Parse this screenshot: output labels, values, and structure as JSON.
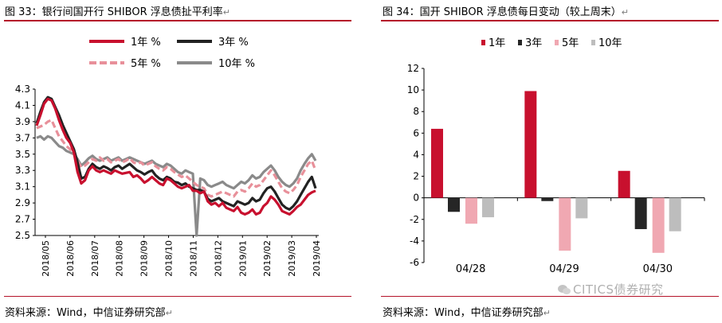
{
  "left": {
    "title": "图 33：银行间国开行 SHIBOR 浮息债扯平利率",
    "source": "资料来源：Wind，中信证券研究部",
    "chart_data": {
      "type": "line",
      "ylim": [
        2.5,
        4.3
      ],
      "yticks": [
        "4.3",
        "4.1",
        "3.9",
        "3.7",
        "3.5",
        "3.3",
        "3.1",
        "2.9",
        "2.7",
        "2.5"
      ],
      "xticks": [
        "2018/05",
        "2018/06",
        "2018/07",
        "2018/08",
        "2018/09",
        "2018/10",
        "2018/11",
        "2018/12",
        "2019/01",
        "2019/02",
        "2019/03",
        "2019/04"
      ],
      "series": [
        {
          "name": "1年 %",
          "color": "#c8102e",
          "dash": "",
          "width": 3.2,
          "values": [
            3.85,
            3.98,
            4.12,
            4.18,
            4.16,
            4.06,
            3.92,
            3.8,
            3.7,
            3.64,
            3.52,
            3.28,
            3.14,
            3.18,
            3.3,
            3.35,
            3.3,
            3.28,
            3.3,
            3.28,
            3.26,
            3.3,
            3.28,
            3.26,
            3.27,
            3.28,
            3.22,
            3.24,
            3.2,
            3.15,
            3.18,
            3.22,
            3.18,
            3.14,
            3.12,
            3.2,
            3.18,
            3.14,
            3.1,
            3.08,
            3.1,
            3.12,
            3.05,
            3.05,
            3.02,
            3.04,
            2.92,
            2.88,
            2.9,
            2.86,
            2.9,
            2.84,
            2.82,
            2.8,
            2.85,
            2.78,
            2.76,
            2.78,
            2.82,
            2.76,
            2.78,
            2.86,
            2.9,
            2.98,
            2.94,
            2.88,
            2.8,
            2.78,
            2.76,
            2.8,
            2.85,
            2.88,
            2.94,
            3.0,
            3.03,
            3.05
          ]
        },
        {
          "name": "3年 %",
          "color": "#222222",
          "dash": "",
          "width": 3.2,
          "values": [
            3.88,
            4.02,
            4.14,
            4.2,
            4.18,
            4.08,
            3.98,
            3.86,
            3.76,
            3.66,
            3.56,
            3.4,
            3.2,
            3.22,
            3.32,
            3.38,
            3.34,
            3.32,
            3.35,
            3.33,
            3.3,
            3.34,
            3.36,
            3.32,
            3.35,
            3.38,
            3.34,
            3.3,
            3.28,
            3.25,
            3.28,
            3.3,
            3.24,
            3.2,
            3.18,
            3.22,
            3.2,
            3.16,
            3.15,
            3.12,
            3.14,
            3.1,
            3.08,
            3.06,
            3.06,
            3.04,
            2.95,
            2.92,
            2.94,
            2.96,
            2.92,
            2.9,
            2.88,
            2.86,
            2.92,
            2.9,
            2.88,
            2.9,
            2.96,
            2.92,
            2.94,
            3.02,
            3.08,
            3.1,
            3.04,
            2.96,
            2.88,
            2.84,
            2.82,
            2.86,
            2.92,
            3.0,
            3.08,
            3.16,
            3.22,
            3.08
          ]
        },
        {
          "name": "5年 %",
          "color": "#e8909a",
          "dash": "8 4",
          "width": 3.2,
          "values": [
            3.82,
            3.84,
            3.86,
            3.9,
            3.92,
            3.82,
            3.72,
            3.66,
            3.6,
            3.56,
            3.5,
            3.42,
            3.34,
            3.36,
            3.4,
            3.44,
            3.42,
            3.46,
            3.42,
            3.44,
            3.4,
            3.42,
            3.44,
            3.4,
            3.42,
            3.45,
            3.4,
            3.38,
            3.4,
            3.36,
            3.38,
            3.4,
            3.35,
            3.32,
            3.3,
            3.34,
            3.32,
            3.28,
            3.25,
            3.22,
            3.24,
            3.2,
            3.16,
            3.12,
            3.1,
            3.08,
            3.0,
            2.98,
            3.0,
            3.02,
            3.04,
            3.02,
            3.0,
            2.98,
            3.04,
            3.06,
            3.04,
            3.08,
            3.14,
            3.1,
            3.12,
            3.18,
            3.24,
            3.3,
            3.24,
            3.16,
            3.08,
            3.04,
            3.02,
            3.06,
            3.12,
            3.22,
            3.3,
            3.38,
            3.42,
            3.3
          ]
        },
        {
          "name": "10年 %",
          "color": "#8a8a8a",
          "dash": "",
          "width": 3.2,
          "values": [
            3.7,
            3.72,
            3.68,
            3.72,
            3.7,
            3.65,
            3.6,
            3.58,
            3.54,
            3.52,
            3.5,
            3.44,
            3.36,
            3.4,
            3.45,
            3.48,
            3.44,
            3.42,
            3.44,
            3.46,
            3.42,
            3.44,
            3.46,
            3.42,
            3.44,
            3.46,
            3.44,
            3.42,
            3.4,
            3.38,
            3.4,
            3.42,
            3.38,
            3.36,
            3.34,
            3.38,
            3.36,
            3.32,
            3.28,
            3.26,
            3.3,
            3.28,
            3.26,
            2.5,
            3.2,
            3.18,
            3.12,
            3.1,
            3.12,
            3.14,
            3.16,
            3.12,
            3.1,
            3.08,
            3.12,
            3.16,
            3.14,
            3.18,
            3.24,
            3.2,
            3.22,
            3.28,
            3.32,
            3.36,
            3.3,
            3.22,
            3.16,
            3.12,
            3.1,
            3.14,
            3.2,
            3.3,
            3.38,
            3.45,
            3.5,
            3.42
          ]
        }
      ]
    }
  },
  "right": {
    "title": "图 34：国开 SHIBOR 浮息债每日变动（较上周末）",
    "source": "资料来源：Wind，中信证券研究部",
    "chart_data": {
      "type": "bar",
      "ylim": [
        -6,
        12
      ],
      "yticks": [
        "12",
        "10",
        "8",
        "6",
        "4",
        "2",
        "0",
        "-2",
        "-4",
        "-6"
      ],
      "categories": [
        "04/28",
        "04/29",
        "04/30"
      ],
      "series": [
        {
          "name": "1年",
          "color": "#c8102e",
          "values": [
            6.4,
            9.9,
            2.5
          ]
        },
        {
          "name": "3年",
          "color": "#262626",
          "values": [
            -1.3,
            -0.3,
            -2.9
          ]
        },
        {
          "name": "5年",
          "color": "#f0a8b2",
          "values": [
            -2.4,
            -4.9,
            -5.1
          ]
        },
        {
          "name": "10年",
          "color": "#bdbdbd",
          "values": [
            -1.8,
            -1.9,
            -3.1
          ]
        }
      ]
    }
  },
  "watermark": "CITICS债券研究",
  "para_mark": "↵",
  "icons": {
    "wechat": "wechat-icon"
  }
}
